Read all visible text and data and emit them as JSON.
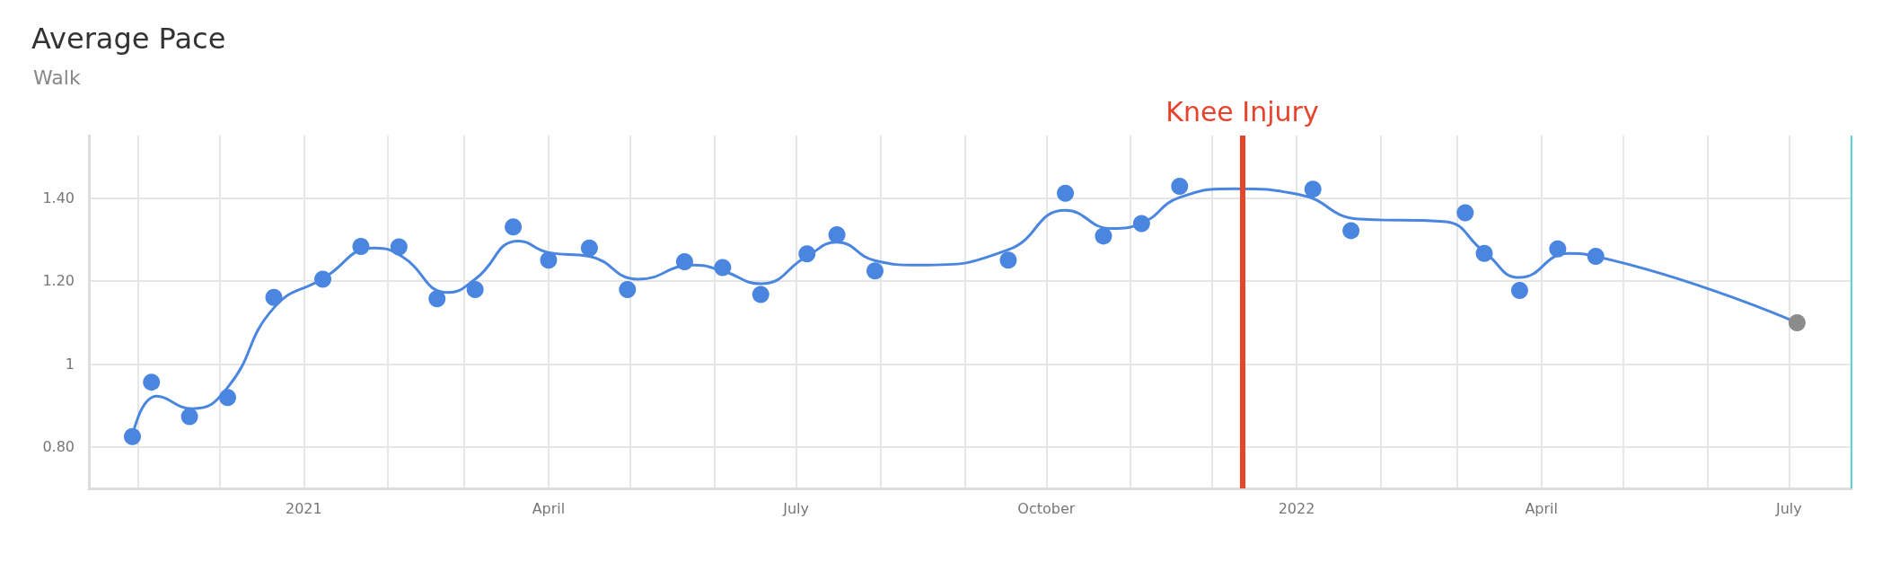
{
  "chart_data": {
    "type": "scatter",
    "title": "Average Pace",
    "subtitle": "Walk",
    "xlim": [
      "2020-10-14",
      "2022-07-24"
    ],
    "xticks": [
      {
        "value": "2020-11-01",
        "label": null
      },
      {
        "value": "2020-12-01",
        "label": null
      },
      {
        "value": "2021-01-01",
        "label": "2021"
      },
      {
        "value": "2021-02-01",
        "label": null
      },
      {
        "value": "2021-03-01",
        "label": null
      },
      {
        "value": "2021-04-01",
        "label": "April"
      },
      {
        "value": "2021-05-01",
        "label": null
      },
      {
        "value": "2021-06-01",
        "label": null
      },
      {
        "value": "2021-07-01",
        "label": "July"
      },
      {
        "value": "2021-08-01",
        "label": null
      },
      {
        "value": "2021-09-01",
        "label": null
      },
      {
        "value": "2021-10-01",
        "label": "October"
      },
      {
        "value": "2021-11-01",
        "label": null
      },
      {
        "value": "2021-12-01",
        "label": null
      },
      {
        "value": "2022-01-01",
        "label": "2022"
      },
      {
        "value": "2022-02-01",
        "label": null
      },
      {
        "value": "2022-03-01",
        "label": null
      },
      {
        "value": "2022-04-01",
        "label": "April"
      },
      {
        "value": "2022-05-01",
        "label": null
      },
      {
        "value": "2022-06-01",
        "label": null
      },
      {
        "value": "2022-07-01",
        "label": "July"
      }
    ],
    "ylim": [
      0.7,
      1.55
    ],
    "yticks": [
      {
        "value": 0.8,
        "label": "0.80"
      },
      {
        "value": 1,
        "label": "1"
      },
      {
        "value": 1.2,
        "label": "1.20"
      },
      {
        "value": 1.4,
        "label": "1.40"
      }
    ],
    "grid": true,
    "ref_lines": [
      {
        "axis": "x",
        "value": "2021-12-12",
        "label": "Knee Injury",
        "color": "#e8432b",
        "line_style": "solid"
      },
      {
        "axis": "x",
        "value": "2022-07-24",
        "label": null,
        "color": "#5fd3d3",
        "line_style": "solid"
      }
    ],
    "series": [
      {
        "marker": "circle",
        "color": "#4a86e0",
        "x": [
          "2020-10-30",
          "2020-11-06",
          "2020-11-20",
          "2020-12-04",
          "2020-12-21",
          "2021-01-08",
          "2021-01-22",
          "2021-02-05",
          "2021-02-19",
          "2021-03-05",
          "2021-03-19",
          "2021-04-01",
          "2021-04-16",
          "2021-04-30",
          "2021-05-21",
          "2021-06-04",
          "2021-06-18",
          "2021-07-05",
          "2021-07-16",
          "2021-07-30",
          "2021-09-17",
          "2021-10-08",
          "2021-10-22",
          "2021-11-05",
          "2021-11-19",
          "2022-01-07",
          "2022-01-21",
          "2022-03-04",
          "2022-03-11",
          "2022-03-24",
          "2022-04-07",
          "2022-04-21",
          "2022-07-04"
        ],
        "values": [
          0.825,
          0.956,
          0.873,
          0.919,
          1.16,
          1.204,
          1.283,
          1.282,
          1.157,
          1.179,
          1.33,
          1.25,
          1.279,
          1.179,
          1.246,
          1.232,
          1.167,
          1.265,
          1.311,
          1.224,
          1.25,
          1.411,
          1.308,
          1.338,
          1.428,
          1.421,
          1.321,
          1.364,
          1.266,
          1.177,
          1.277,
          1.259,
          1.099
        ],
        "colors": [
          "#4a86e0",
          "#4a86e0",
          "#4a86e0",
          "#4a86e0",
          "#4a86e0",
          "#4a86e0",
          "#4a86e0",
          "#4a86e0",
          "#4a86e0",
          "#4a86e0",
          "#4a86e0",
          "#4a86e0",
          "#4a86e0",
          "#4a86e0",
          "#4a86e0",
          "#4a86e0",
          "#4a86e0",
          "#4a86e0",
          "#4a86e0",
          "#4a86e0",
          "#4a86e0",
          "#4a86e0",
          "#4a86e0",
          "#4a86e0",
          "#4a86e0",
          "#4a86e0",
          "#4a86e0",
          "#4a86e0",
          "#4a86e0",
          "#4a86e0",
          "#4a86e0",
          "#4a86e0",
          "#8c8c8c"
        ]
      },
      {
        "type": "line",
        "marker": "none",
        "line_style": "solid",
        "color": "#4a86e0",
        "x": [
          "2020-10-30",
          "2020-11-08",
          "2020-11-21",
          "2020-12-04",
          "2020-12-21",
          "2021-01-08",
          "2021-01-27",
          "2021-02-06",
          "2021-02-23",
          "2021-03-05",
          "2021-03-21",
          "2021-04-01",
          "2021-04-16",
          "2021-05-04",
          "2021-05-24",
          "2021-06-04",
          "2021-06-18",
          "2021-07-05",
          "2021-07-16",
          "2021-07-30",
          "2021-08-15",
          "2021-09-17",
          "2021-10-08",
          "2021-10-25",
          "2021-11-05",
          "2021-11-19",
          "2021-12-09",
          "2022-01-02",
          "2022-01-24",
          "2022-02-24",
          "2022-03-11",
          "2022-03-24",
          "2022-04-11",
          "2022-04-21",
          "2022-07-04"
        ],
        "values": [
          0.825,
          0.922,
          0.892,
          0.943,
          1.135,
          1.205,
          1.279,
          1.259,
          1.172,
          1.204,
          1.296,
          1.268,
          1.259,
          1.204,
          1.238,
          1.224,
          1.193,
          1.259,
          1.293,
          1.249,
          1.238,
          1.275,
          1.37,
          1.326,
          1.339,
          1.401,
          1.422,
          1.408,
          1.349,
          1.343,
          1.27,
          1.208,
          1.266,
          1.259,
          1.099
        ]
      }
    ]
  }
}
